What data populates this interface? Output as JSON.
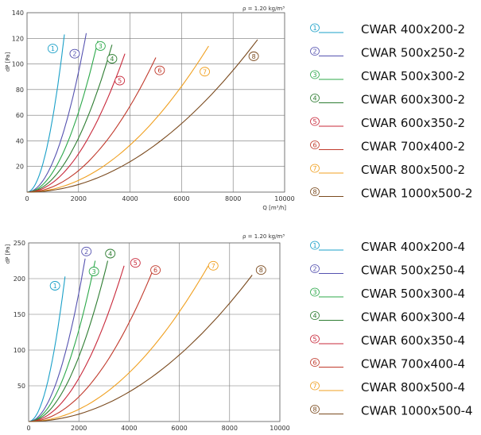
{
  "colors": [
    "#1aa0c8",
    "#5552b0",
    "#2ca84a",
    "#2e7d32",
    "#c8283a",
    "#c0392b",
    "#f0a020",
    "#7a4a1e"
  ],
  "chart_data": [
    {
      "type": "line",
      "density_label": "ρ = 1.20 kg/m³",
      "xlabel": "Q [m³/h]",
      "ylabel": "dP [Pa]",
      "xlim": [
        0,
        10000
      ],
      "ylim": [
        0,
        140
      ],
      "x_ticks": [
        "0",
        "2000",
        "4000",
        "6000",
        "8000",
        "10000"
      ],
      "y_ticks": [
        "20",
        "40",
        "60",
        "80",
        "100",
        "120",
        "140"
      ],
      "grid": true,
      "series": [
        {
          "name": "CWAR 400x200-2",
          "marker": "1",
          "x": [
            0,
            1450
          ],
          "y": [
            0,
            123
          ],
          "marker_at": [
            1000,
            112
          ]
        },
        {
          "name": "CWAR 500x250-2",
          "marker": "2",
          "x": [
            0,
            2300
          ],
          "y": [
            0,
            124
          ],
          "marker_at": [
            1850,
            108
          ]
        },
        {
          "name": "CWAR 500x300-2",
          "marker": "3",
          "x": [
            0,
            2750
          ],
          "y": [
            0,
            118
          ],
          "marker_at": [
            2850,
            114
          ]
        },
        {
          "name": "CWAR 600x300-2",
          "marker": "4",
          "x": [
            0,
            3300
          ],
          "y": [
            0,
            115
          ],
          "marker_at": [
            3300,
            104
          ]
        },
        {
          "name": "CWAR 600x350-2",
          "marker": "5",
          "x": [
            0,
            3800
          ],
          "y": [
            0,
            108
          ],
          "marker_at": [
            3600,
            87
          ]
        },
        {
          "name": "CWAR 700x400-2",
          "marker": "6",
          "x": [
            0,
            5000
          ],
          "y": [
            0,
            105
          ],
          "marker_at": [
            5150,
            95
          ]
        },
        {
          "name": "CWAR 800x500-2",
          "marker": "7",
          "x": [
            0,
            7050
          ],
          "y": [
            0,
            114
          ],
          "marker_at": [
            6900,
            94
          ]
        },
        {
          "name": "CWAR 1000x500-2",
          "marker": "8",
          "x": [
            0,
            8950
          ],
          "y": [
            0,
            119
          ],
          "marker_at": [
            8800,
            106
          ]
        }
      ]
    },
    {
      "type": "line",
      "density_label": "ρ = 1.20 kg/m³",
      "xlabel": "",
      "ylabel": "dP [Pa]",
      "xlim": [
        0,
        10000
      ],
      "ylim": [
        0,
        250
      ],
      "x_ticks": [
        "0",
        "2000",
        "4000",
        "6000",
        "8000",
        "10000"
      ],
      "y_ticks": [
        "50",
        "100",
        "150",
        "200",
        "250"
      ],
      "grid": true,
      "series": [
        {
          "name": "CWAR 400x200-4",
          "marker": "1",
          "x": [
            0,
            1450
          ],
          "y": [
            0,
            203
          ],
          "marker_at": [
            1050,
            190
          ]
        },
        {
          "name": "CWAR 500x250-4",
          "marker": "2",
          "x": [
            0,
            2250
          ],
          "y": [
            0,
            228
          ],
          "marker_at": [
            2300,
            238
          ]
        },
        {
          "name": "CWAR 500x300-4",
          "marker": "3",
          "x": [
            0,
            2650
          ],
          "y": [
            0,
            225
          ],
          "marker_at": [
            2600,
            210
          ]
        },
        {
          "name": "CWAR 600x300-4",
          "marker": "4",
          "x": [
            0,
            3150
          ],
          "y": [
            0,
            225
          ],
          "marker_at": [
            3250,
            235
          ]
        },
        {
          "name": "CWAR 600x350-4",
          "marker": "5",
          "x": [
            0,
            3800
          ],
          "y": [
            0,
            218
          ],
          "marker_at": [
            4250,
            222
          ]
        },
        {
          "name": "CWAR 700x400-4",
          "marker": "6",
          "x": [
            0,
            4950
          ],
          "y": [
            0,
            212
          ],
          "marker_at": [
            5050,
            212
          ]
        },
        {
          "name": "CWAR 800x500-4",
          "marker": "7",
          "x": [
            0,
            7150
          ],
          "y": [
            0,
            218
          ],
          "marker_at": [
            7350,
            218
          ]
        },
        {
          "name": "CWAR 1000x500-4",
          "marker": "8",
          "x": [
            0,
            8900
          ],
          "y": [
            0,
            205
          ],
          "marker_at": [
            9250,
            212
          ]
        }
      ]
    }
  ]
}
